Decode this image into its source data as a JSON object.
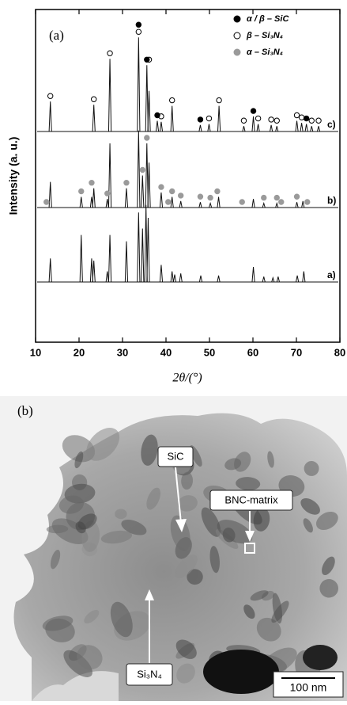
{
  "chart_data": {
    "type": "spectrum",
    "panel_label": "(a)",
    "y_label": "Intensity (a. u.)",
    "x_label": "2θ/(°)",
    "xlim": [
      10,
      80
    ],
    "xticks": [
      10,
      20,
      30,
      40,
      50,
      60,
      70,
      80
    ],
    "phases": [
      {
        "name": "α / β – SiC",
        "color": "#000000",
        "marker": "filled"
      },
      {
        "name": "β – Si₃N₄",
        "color": "#000000",
        "marker": "open"
      },
      {
        "name": "α – Si₃N₄",
        "color": "#9a9a9a",
        "marker": "filled"
      }
    ],
    "series": [
      {
        "name": "c)",
        "color": "#111111",
        "x": [
          13.4,
          23.4,
          27.1,
          33.7,
          35.6,
          36.1,
          38.0,
          38.9,
          41.4,
          47.9,
          49.9,
          52.2,
          57.9,
          60.1,
          61.2,
          64.2,
          65.5,
          70.1,
          71.2,
          72.3,
          73.5,
          75.1
        ],
        "values": [
          28,
          25,
          68,
          88,
          62,
          38,
          10,
          9,
          24,
          6,
          7,
          24,
          5,
          14,
          7,
          6,
          5,
          10,
          8,
          7,
          5,
          5
        ],
        "markers": [
          {
            "phase": 1,
            "x": [
              13.4,
              23.4,
              27.1,
              33.7,
              36.1,
              38.9,
              41.4,
              49.9,
              52.2,
              57.9,
              61.2,
              64.2,
              65.5,
              70.1,
              71.2,
              73.5,
              75.1
            ]
          },
          {
            "phase": 0,
            "x": [
              33.7,
              35.6,
              38.0,
              47.9,
              60.1,
              72.3
            ]
          }
        ]
      },
      {
        "name": "b)",
        "color": "#111111",
        "x": [
          13.4,
          20.5,
          22.9,
          23.4,
          26.5,
          27.1,
          30.9,
          33.7,
          34.6,
          35.6,
          36.1,
          38.9,
          41.4,
          43.4,
          47.9,
          50.2,
          52.1,
          60.1,
          62.5,
          65.5,
          70.1,
          71.5
        ],
        "values": [
          24,
          10,
          10,
          18,
          8,
          60,
          18,
          72,
          30,
          60,
          42,
          14,
          10,
          6,
          5,
          4,
          10,
          8,
          4,
          4,
          5,
          6
        ],
        "markers": [
          {
            "phase": 2,
            "x": [
              12.5,
              20.5,
              22.9,
              26.5,
              30.9,
              34.6,
              35.6,
              38.9,
              40.5,
              41.4,
              43.4,
              47.9,
              50.2,
              51.8,
              57.5,
              62.5,
              65.5,
              66.5,
              70.1,
              72.5
            ]
          }
        ]
      },
      {
        "name": "a)",
        "color": "#111111",
        "x": [
          13.4,
          20.5,
          22.9,
          23.4,
          26.5,
          27.1,
          30.9,
          33.7,
          34.6,
          35.4,
          35.9,
          38.9,
          41.4,
          42.0,
          43.4,
          48.0,
          52.1,
          60.1,
          62.5,
          64.6,
          65.8,
          70.2,
          71.7
        ],
        "values": [
          22,
          44,
          22,
          20,
          10,
          44,
          38,
          65,
          50,
          72,
          60,
          16,
          10,
          7,
          8,
          6,
          6,
          14,
          5,
          4,
          5,
          6,
          10
        ],
        "markers": []
      }
    ]
  },
  "image_panel": {
    "panel_label": "(b)",
    "labels": [
      "SiC",
      "BNC-matrix",
      "Si₃N₄"
    ],
    "scale_bar": "100 nm"
  }
}
